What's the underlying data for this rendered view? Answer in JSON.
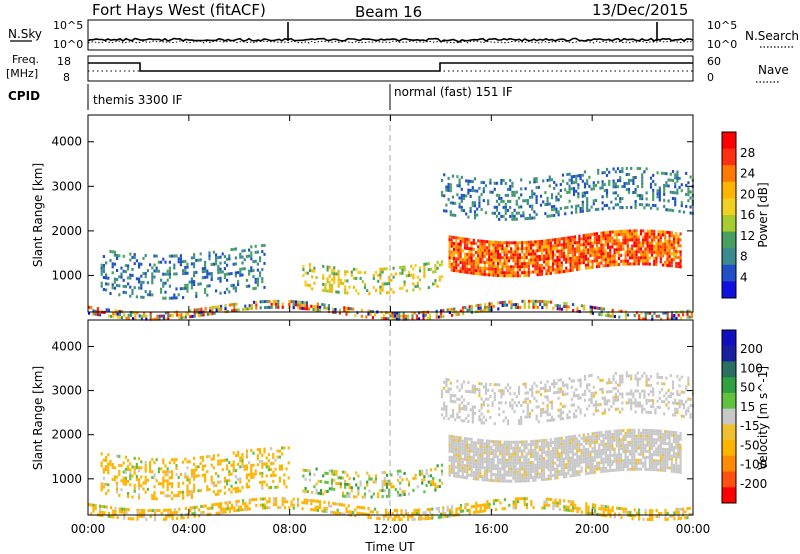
{
  "header": {
    "station": "Fort Hays West (fitACF)",
    "beam": "Beam 16",
    "date": "13/Dec/2015"
  },
  "noise_panel": {
    "left_label": "N.Sky",
    "right_label": "N.Search",
    "left_ticks": [
      "10^5",
      "10^0"
    ],
    "right_ticks": [
      "10^5",
      "10^0"
    ]
  },
  "freq_panel": {
    "left_label_1": "Freq.",
    "left_label_2": "[MHz]",
    "right_label": "Nave",
    "left_ticks": [
      "18",
      "8"
    ],
    "right_ticks": [
      "60",
      "0"
    ]
  },
  "cpid_panel": {
    "label": "CPID",
    "modes": [
      {
        "name": "themis 3300 IF",
        "start_hour": 0
      },
      {
        "name": "normal (fast) 151 IF",
        "start_hour": 12
      }
    ]
  },
  "x_axis": {
    "label": "Time UT",
    "ticks": [
      "00:00",
      "04:00",
      "08:00",
      "12:00",
      "16:00",
      "20:00",
      "00:00"
    ],
    "tick_hours": [
      0,
      4,
      8,
      12,
      16,
      20,
      24
    ]
  },
  "colors": {
    "power_scale": [
      "#1010e0",
      "#2050c8",
      "#3a8a90",
      "#48a060",
      "#a8cc30",
      "#f0d020",
      "#ffb400",
      "#ff7a00",
      "#ff3010",
      "#ff0000"
    ],
    "velocity_scale": [
      "#ff0000",
      "#ff5010",
      "#ff8c00",
      "#ffb400",
      "#f0c030",
      "#c8c8c8",
      "#60c040",
      "#30a040",
      "#2a7060",
      "#1820a0",
      "#1010c0"
    ]
  },
  "chart_data": [
    {
      "type": "heatmap",
      "title": "Power",
      "ylabel": "Slant Range [km]",
      "xlabel": "",
      "colorbar_label": "Power [dB]",
      "colorbar_ticks": [
        "28",
        "24",
        "20",
        "16",
        "12",
        "8",
        "4"
      ],
      "xlim": [
        0,
        24
      ],
      "ylim": [
        180,
        4600
      ],
      "y_ticks": [
        1000,
        2000,
        3000,
        4000
      ],
      "regions": [
        {
          "name": "near-range clutter",
          "start_hour": 0,
          "end_hour": 24,
          "range_min": 180,
          "range_max": 320,
          "level": "mixed"
        },
        {
          "name": "early scatter",
          "start_hour": 0.5,
          "end_hour": 7,
          "range_min": 600,
          "range_max": 1600,
          "level": "low"
        },
        {
          "name": "pre-midnight band",
          "start_hour": 8.5,
          "end_hour": 14,
          "range_min": 700,
          "range_max": 1300,
          "level": "medium"
        },
        {
          "name": "main echo band",
          "start_hour": 14.3,
          "end_hour": 23.5,
          "range_min": 1100,
          "range_max": 1900,
          "level": "high"
        },
        {
          "name": "upper echoes",
          "start_hour": 14,
          "end_hour": 24,
          "range_min": 2400,
          "range_max": 3300,
          "level": "low"
        }
      ]
    },
    {
      "type": "heatmap",
      "title": "Velocity",
      "ylabel": "Slant Range [km]",
      "xlabel": "Time UT",
      "colorbar_label": "Velocity [m s^-1]",
      "colorbar_ticks": [
        "200",
        "100",
        "50",
        "15",
        "-15",
        "-50",
        "-100",
        "-200"
      ],
      "xlim": [
        0,
        24
      ],
      "ylim": [
        180,
        4600
      ],
      "y_ticks": [
        1000,
        2000,
        3000,
        4000
      ],
      "regions": [
        {
          "name": "near-range ground scatter",
          "start_hour": 0,
          "end_hour": 24,
          "range_min": 180,
          "range_max": 450,
          "level": "-15 to -50"
        },
        {
          "name": "early scatter",
          "start_hour": 0.5,
          "end_hour": 8,
          "range_min": 700,
          "range_max": 1600,
          "level": "-15 to -50"
        },
        {
          "name": "pre-midnight band",
          "start_hour": 8.5,
          "end_hour": 14,
          "range_min": 700,
          "range_max": 1300,
          "level": "mixed"
        },
        {
          "name": "main echo band",
          "start_hour": 14.3,
          "end_hour": 23.5,
          "range_min": 1100,
          "range_max": 2000,
          "level": "-15 to 15"
        },
        {
          "name": "upper echoes",
          "start_hour": 14,
          "end_hour": 24,
          "range_min": 2400,
          "range_max": 3300,
          "level": "-15 to 15"
        }
      ]
    }
  ]
}
